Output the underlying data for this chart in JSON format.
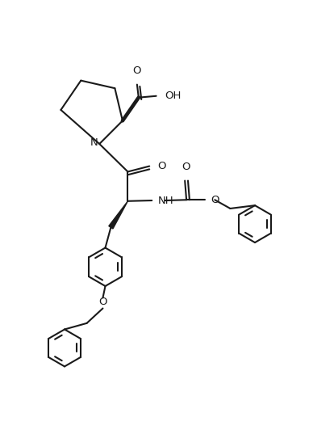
{
  "background_color": "#ffffff",
  "line_color": "#1a1a1a",
  "line_width": 1.5,
  "font_size": 9.5,
  "figsize": [
    3.88,
    5.32
  ],
  "dpi": 100,
  "xlim": [
    0,
    10
  ],
  "ylim": [
    0,
    13.5
  ]
}
